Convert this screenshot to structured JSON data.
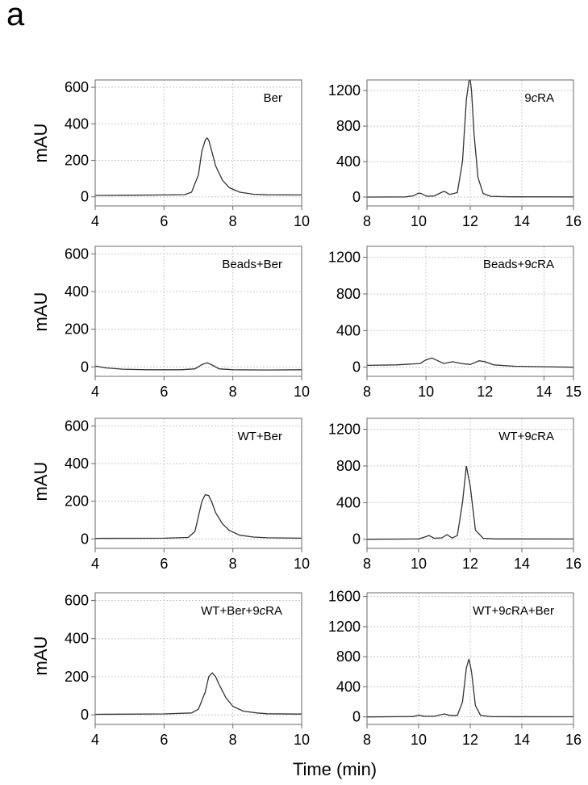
{
  "figure": {
    "panel_letter": "a",
    "shared_ylabel": "mAU",
    "shared_xlabel": "Time (min)"
  },
  "chart_data": [
    {
      "type": "line",
      "title": "Ber",
      "xlim": [
        4,
        10
      ],
      "ylim": [
        -50,
        640
      ],
      "xticks": [
        "4",
        "6",
        "8",
        "10"
      ],
      "yticks": [
        "0",
        "200",
        "400",
        "600"
      ],
      "x": [
        4.0,
        5.0,
        6.0,
        6.6,
        6.8,
        7.0,
        7.1,
        7.2,
        7.25,
        7.3,
        7.4,
        7.5,
        7.7,
        7.9,
        8.2,
        8.6,
        9.0,
        10.0
      ],
      "series": [
        {
          "values": [
            8,
            9,
            10,
            12,
            25,
            120,
            250,
            310,
            322,
            310,
            240,
            170,
            90,
            50,
            25,
            14,
            11,
            10
          ]
        }
      ],
      "grid": true
    },
    {
      "type": "line",
      "title": "9cRA",
      "xlim": [
        8,
        16
      ],
      "ylim": [
        -100,
        1320
      ],
      "xticks": [
        "8",
        "10",
        "12",
        "14",
        "16"
      ],
      "yticks": [
        "0",
        "400",
        "800",
        "1200"
      ],
      "x": [
        8.0,
        9.5,
        9.8,
        10.0,
        10.1,
        10.3,
        10.6,
        10.9,
        11.0,
        11.2,
        11.5,
        11.7,
        11.85,
        11.95,
        12.0,
        12.05,
        12.15,
        12.3,
        12.5,
        12.8,
        13.5,
        16.0
      ],
      "series": [
        {
          "values": [
            0,
            2,
            15,
            45,
            40,
            10,
            12,
            55,
            65,
            30,
            50,
            400,
            1100,
            1310,
            1320,
            1200,
            700,
            220,
            40,
            8,
            3,
            2
          ]
        }
      ],
      "grid": true
    },
    {
      "type": "line",
      "title": "Beads+Ber",
      "xlim": [
        4,
        10
      ],
      "ylim": [
        -50,
        640
      ],
      "xticks": [
        "4",
        "6",
        "8",
        "10"
      ],
      "yticks": [
        "0",
        "200",
        "400",
        "600"
      ],
      "x": [
        4.0,
        4.3,
        4.8,
        5.5,
        6.5,
        6.9,
        7.1,
        7.25,
        7.4,
        7.6,
        8.0,
        9.0,
        10.0
      ],
      "series": [
        {
          "values": [
            5,
            -5,
            -12,
            -15,
            -15,
            -10,
            12,
            22,
            10,
            -10,
            -15,
            -16,
            -15
          ]
        }
      ],
      "grid": true
    },
    {
      "type": "line",
      "title": "Beads+9cRA",
      "xlim": [
        8,
        15
      ],
      "ylim": [
        -100,
        1320
      ],
      "xticks": [
        "8",
        "10",
        "12",
        "14",
        "15"
      ],
      "yticks": [
        "0",
        "400",
        "800",
        "1200"
      ],
      "x": [
        8.0,
        9.0,
        9.8,
        10.0,
        10.2,
        10.4,
        10.6,
        10.9,
        11.2,
        11.5,
        11.8,
        12.0,
        12.3,
        13.0,
        14.0,
        15.0
      ],
      "series": [
        {
          "values": [
            20,
            25,
            40,
            80,
            100,
            70,
            40,
            60,
            40,
            30,
            70,
            60,
            25,
            10,
            5,
            0
          ]
        }
      ],
      "grid": true
    },
    {
      "type": "line",
      "title": "WT+Ber",
      "xlim": [
        4,
        10
      ],
      "ylim": [
        -50,
        640
      ],
      "xticks": [
        "4",
        "6",
        "8",
        "10"
      ],
      "yticks": [
        "0",
        "200",
        "400",
        "600"
      ],
      "x": [
        4.0,
        6.0,
        6.7,
        6.9,
        7.0,
        7.1,
        7.2,
        7.3,
        7.4,
        7.5,
        7.7,
        7.9,
        8.2,
        8.6,
        9.0,
        10.0
      ],
      "series": [
        {
          "values": [
            3,
            4,
            8,
            40,
            120,
            200,
            235,
            230,
            190,
            140,
            80,
            45,
            20,
            10,
            6,
            4
          ]
        }
      ],
      "grid": true
    },
    {
      "type": "line",
      "title": "WT+9cRA",
      "xlim": [
        8,
        16
      ],
      "ylim": [
        -100,
        1320
      ],
      "xticks": [
        "8",
        "10",
        "12",
        "14",
        "16"
      ],
      "yticks": [
        "0",
        "400",
        "800",
        "1200"
      ],
      "x": [
        8.0,
        10.0,
        10.2,
        10.4,
        10.6,
        10.9,
        11.1,
        11.3,
        11.5,
        11.7,
        11.85,
        12.0,
        12.2,
        12.5,
        13.0,
        16.0
      ],
      "series": [
        {
          "values": [
            0,
            3,
            20,
            40,
            10,
            15,
            50,
            12,
            40,
            400,
            800,
            580,
            100,
            10,
            3,
            2
          ]
        }
      ],
      "grid": true
    },
    {
      "type": "line",
      "title": "WT+Ber+9cRA",
      "xlim": [
        4,
        10
      ],
      "ylim": [
        -50,
        640
      ],
      "xticks": [
        "4",
        "6",
        "8",
        "10"
      ],
      "yticks": [
        "0",
        "200",
        "400",
        "600"
      ],
      "x": [
        4.0,
        6.0,
        6.8,
        7.0,
        7.2,
        7.3,
        7.4,
        7.5,
        7.6,
        7.8,
        8.0,
        8.3,
        8.7,
        9.0,
        10.0
      ],
      "series": [
        {
          "values": [
            3,
            5,
            10,
            30,
            120,
            200,
            220,
            200,
            160,
            90,
            45,
            20,
            10,
            6,
            4
          ]
        }
      ],
      "grid": true
    },
    {
      "type": "line",
      "title": "WT+9cRA+Ber",
      "xlim": [
        8,
        16
      ],
      "ylim": [
        -100,
        1650
      ],
      "xticks": [
        "8",
        "10",
        "12",
        "14",
        "16"
      ],
      "yticks": [
        "0",
        "400",
        "800",
        "1200",
        "1600"
      ],
      "x": [
        8.0,
        9.8,
        10.0,
        10.2,
        10.6,
        11.0,
        11.2,
        11.5,
        11.7,
        11.85,
        11.95,
        12.05,
        12.2,
        12.4,
        12.8,
        16.0
      ],
      "series": [
        {
          "values": [
            0,
            5,
            25,
            10,
            8,
            40,
            20,
            20,
            200,
            650,
            770,
            600,
            150,
            20,
            3,
            2
          ]
        }
      ],
      "grid": true
    }
  ]
}
